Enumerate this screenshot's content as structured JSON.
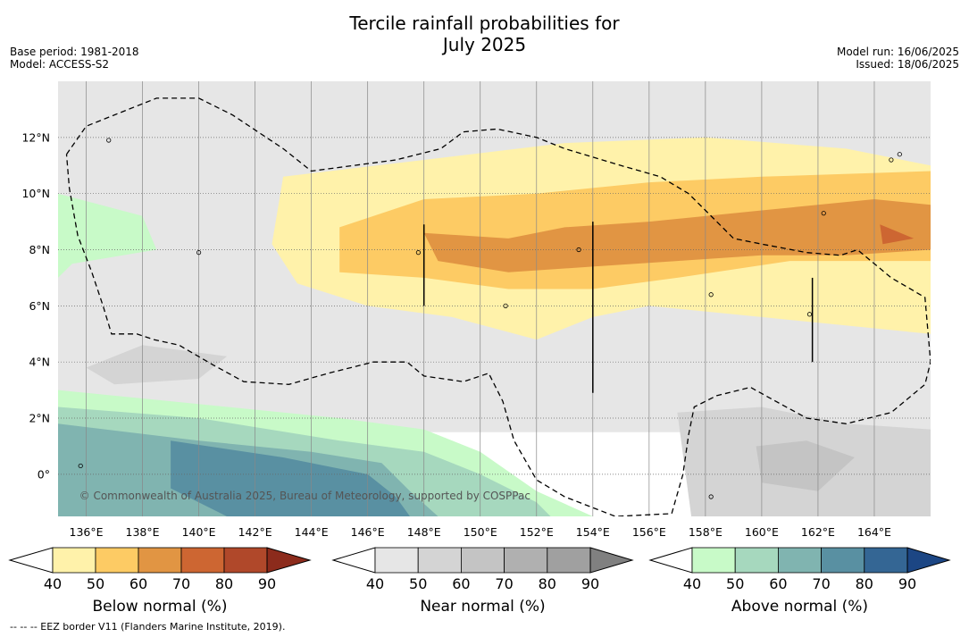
{
  "header": {
    "title_line1": "Tercile rainfall probabilities for",
    "title_line2": "July 2025",
    "base_period": "Base period: 1981-2018",
    "model": "Model: ACCESS-S2",
    "model_run": "Model run: 16/06/2025",
    "issued": "Issued: 18/06/2025"
  },
  "chart_data": {
    "type": "heatmap",
    "title": "Tercile rainfall probabilities for July 2025",
    "x_ticks": [
      "136°E",
      "138°E",
      "140°E",
      "142°E",
      "144°E",
      "146°E",
      "148°E",
      "150°E",
      "152°E",
      "154°E",
      "156°E",
      "158°E",
      "160°E",
      "162°E",
      "164°E"
    ],
    "x_values": [
      136,
      138,
      140,
      142,
      144,
      146,
      148,
      150,
      152,
      154,
      156,
      158,
      160,
      162,
      164
    ],
    "y_ticks": [
      "12°N",
      "10°N",
      "8°N",
      "6°N",
      "4°N",
      "2°N",
      "0°"
    ],
    "y_values": [
      12,
      10,
      8,
      6,
      4,
      2,
      0
    ],
    "xlim": [
      135,
      166
    ],
    "ylim": [
      -1.5,
      14
    ],
    "grid": true,
    "attribution": "© Commonwealth of Australia 2025, Bureau of Meteorology, supported by COSPPac",
    "colorbars": [
      {
        "label": "Below normal (%)",
        "ticks": [
          "40",
          "50",
          "60",
          "70",
          "80",
          "90"
        ],
        "colors": [
          "#fff2aa",
          "#fdcb64",
          "#e19543",
          "#cd6632",
          "#b0482a",
          "#8c2b1c"
        ]
      },
      {
        "label": "Near normal (%)",
        "ticks": [
          "40",
          "50",
          "60",
          "70",
          "80",
          "90"
        ],
        "colors": [
          "#e6e6e6",
          "#d4d4d4",
          "#c4c4c4",
          "#b0b0b0",
          "#a0a0a0",
          "#808080"
        ]
      },
      {
        "label": "Above normal (%)",
        "ticks": [
          "40",
          "50",
          "60",
          "70",
          "80",
          "90"
        ],
        "colors": [
          "#c8fac8",
          "#a6d8be",
          "#80b4b0",
          "#5990a2",
          "#346694",
          "#1c4684"
        ]
      }
    ],
    "regions": [
      {
        "category": "near",
        "level": 40,
        "poly": [
          [
            135,
            14
          ],
          [
            166,
            14
          ],
          [
            166,
            1.5
          ],
          [
            135,
            1.5
          ]
        ]
      },
      {
        "category": "below",
        "level": 40,
        "poly": [
          [
            143,
            10.6
          ],
          [
            148,
            11.2
          ],
          [
            153,
            11.8
          ],
          [
            158,
            12
          ],
          [
            163,
            11.6
          ],
          [
            166,
            11
          ],
          [
            166,
            5
          ],
          [
            160,
            5.6
          ],
          [
            156,
            6
          ],
          [
            154,
            5.6
          ],
          [
            152,
            4.8
          ],
          [
            149,
            5.6
          ],
          [
            146,
            6
          ],
          [
            143.5,
            6.8
          ],
          [
            142.6,
            8.2
          ]
        ]
      },
      {
        "category": "below",
        "level": 50,
        "poly": [
          [
            145,
            8.8
          ],
          [
            148,
            9.8
          ],
          [
            152,
            10
          ],
          [
            156,
            10.4
          ],
          [
            160,
            10.6
          ],
          [
            166,
            10.8
          ],
          [
            166,
            7.6
          ],
          [
            161,
            7.6
          ],
          [
            157,
            7
          ],
          [
            154,
            6.6
          ],
          [
            151,
            6.6
          ],
          [
            148,
            7
          ],
          [
            145,
            7.2
          ]
        ]
      },
      {
        "category": "below",
        "level": 60,
        "poly": [
          [
            148,
            8.6
          ],
          [
            151,
            8.4
          ],
          [
            153,
            8.8
          ],
          [
            156,
            9
          ],
          [
            160,
            9.4
          ],
          [
            164,
            9.8
          ],
          [
            166,
            9.6
          ],
          [
            166,
            8
          ],
          [
            163,
            7.8
          ],
          [
            160,
            7.8
          ],
          [
            157,
            7.6
          ],
          [
            154,
            7.4
          ],
          [
            151,
            7.2
          ],
          [
            148.5,
            7.6
          ]
        ]
      },
      {
        "category": "below",
        "level": 70,
        "poly": [
          [
            164.2,
            8.9
          ],
          [
            165.4,
            8.4
          ],
          [
            164.3,
            8.2
          ]
        ]
      },
      {
        "category": "above",
        "level": 40,
        "poly": [
          [
            135,
            3
          ],
          [
            145,
            2
          ],
          [
            148,
            1.6
          ],
          [
            150,
            0.8
          ],
          [
            152,
            -0.6
          ],
          [
            154,
            -1.5
          ],
          [
            135,
            -1.5
          ]
        ]
      },
      {
        "category": "above",
        "level": 50,
        "poly": [
          [
            135,
            2.4
          ],
          [
            140,
            2
          ],
          [
            145,
            1.2
          ],
          [
            148,
            0.8
          ],
          [
            150,
            0
          ],
          [
            152,
            -1
          ],
          [
            152.5,
            -1.5
          ],
          [
            135,
            -1.5
          ]
        ]
      },
      {
        "category": "above",
        "level": 60,
        "poly": [
          [
            135,
            1.8
          ],
          [
            140,
            1.2
          ],
          [
            144,
            0.8
          ],
          [
            146.5,
            0.4
          ],
          [
            147.5,
            -0.6
          ],
          [
            148.5,
            -1.5
          ],
          [
            135,
            -1.5
          ]
        ]
      },
      {
        "category": "above",
        "level": 70,
        "poly": [
          [
            139,
            1.2
          ],
          [
            143,
            0.6
          ],
          [
            146,
            0
          ],
          [
            147,
            -0.8
          ],
          [
            147.5,
            -1.5
          ],
          [
            141,
            -1.5
          ],
          [
            139,
            -0.5
          ]
        ]
      },
      {
        "category": "above",
        "level": 40,
        "poly": [
          [
            135,
            10
          ],
          [
            138,
            9.2
          ],
          [
            138.5,
            8
          ],
          [
            135.5,
            7.5
          ],
          [
            135,
            7
          ]
        ]
      },
      {
        "category": "near",
        "level": 50,
        "poly": [
          [
            157,
            2.2
          ],
          [
            160,
            2.4
          ],
          [
            163,
            1.8
          ],
          [
            166,
            1.6
          ],
          [
            166,
            -1.5
          ],
          [
            157.5,
            -1.5
          ]
        ]
      },
      {
        "category": "near",
        "level": 60,
        "poly": [
          [
            159.8,
            1
          ],
          [
            161.6,
            1.2
          ],
          [
            163.3,
            0.6
          ],
          [
            162,
            -0.6
          ],
          [
            160,
            -0.3
          ]
        ]
      },
      {
        "category": "near",
        "level": 50,
        "poly": [
          [
            136,
            3.8
          ],
          [
            138,
            4.6
          ],
          [
            141,
            4.2
          ],
          [
            140,
            3.4
          ],
          [
            137,
            3.2
          ]
        ]
      }
    ],
    "eez_border": [
      [
        135.3,
        11.4
      ],
      [
        136,
        12.4
      ],
      [
        137.5,
        13
      ],
      [
        138.5,
        13.4
      ],
      [
        140,
        13.4
      ],
      [
        141.2,
        12.8
      ],
      [
        143,
        11.6
      ],
      [
        144,
        10.8
      ],
      [
        147,
        11.2
      ],
      [
        148.6,
        11.6
      ],
      [
        149.4,
        12.2
      ],
      [
        150.6,
        12.3
      ],
      [
        152,
        12
      ],
      [
        153,
        11.6
      ],
      [
        155,
        11
      ],
      [
        156.4,
        10.6
      ],
      [
        157.4,
        10
      ],
      [
        158,
        9.4
      ],
      [
        159,
        8.4
      ],
      [
        160,
        8.2
      ],
      [
        161.6,
        7.9
      ],
      [
        162.8,
        7.8
      ],
      [
        163.4,
        8
      ],
      [
        164.6,
        7
      ],
      [
        165.8,
        6.3
      ],
      [
        166,
        4
      ],
      [
        165.8,
        3.2
      ],
      [
        164.6,
        2.2
      ],
      [
        163,
        1.8
      ],
      [
        161.6,
        2
      ],
      [
        160.5,
        2.6
      ],
      [
        159.6,
        3.1
      ],
      [
        158.4,
        2.8
      ],
      [
        157.6,
        2.4
      ],
      [
        157.4,
        1.4
      ],
      [
        157.2,
        0
      ],
      [
        156.8,
        -1.4
      ],
      [
        154.8,
        -1.5
      ],
      [
        153,
        -0.8
      ],
      [
        152,
        -0.2
      ],
      [
        151.2,
        1.2
      ],
      [
        150.8,
        2.6
      ],
      [
        150.3,
        3.6
      ],
      [
        149.4,
        3.3
      ],
      [
        148,
        3.5
      ],
      [
        147.4,
        4
      ],
      [
        146.2,
        4
      ],
      [
        144.6,
        3.6
      ],
      [
        143.2,
        3.2
      ],
      [
        141.6,
        3.3
      ],
      [
        140.5,
        3.9
      ],
      [
        139.3,
        4.6
      ],
      [
        138.4,
        4.8
      ],
      [
        137.8,
        5
      ],
      [
        137.4,
        5
      ],
      [
        136.9,
        5
      ],
      [
        136.6,
        6
      ],
      [
        136.2,
        7.2
      ],
      [
        135.7,
        8.5
      ],
      [
        135.4,
        10.2
      ],
      [
        135.3,
        11.4
      ]
    ],
    "islands": [
      [
        136.8,
        11.9
      ],
      [
        140,
        7.9
      ],
      [
        147.8,
        7.9
      ],
      [
        150.9,
        6
      ],
      [
        153.5,
        8
      ],
      [
        158.2,
        6.4
      ],
      [
        161.7,
        5.7
      ],
      [
        162.2,
        9.3
      ],
      [
        164.6,
        11.2
      ],
      [
        164.9,
        11.4
      ],
      [
        158.2,
        -0.8
      ],
      [
        135.8,
        0.3
      ]
    ],
    "fine_lines": [
      [
        [
          148,
          8.9
        ],
        [
          148,
          6
        ]
      ],
      [
        [
          154,
          9
        ],
        [
          154,
          2.9
        ]
      ],
      [
        [
          161.8,
          7
        ],
        [
          161.8,
          4
        ]
      ]
    ],
    "footnote": "--  --  -- EEZ border V11 (Flanders Marine Institute, 2019)."
  }
}
